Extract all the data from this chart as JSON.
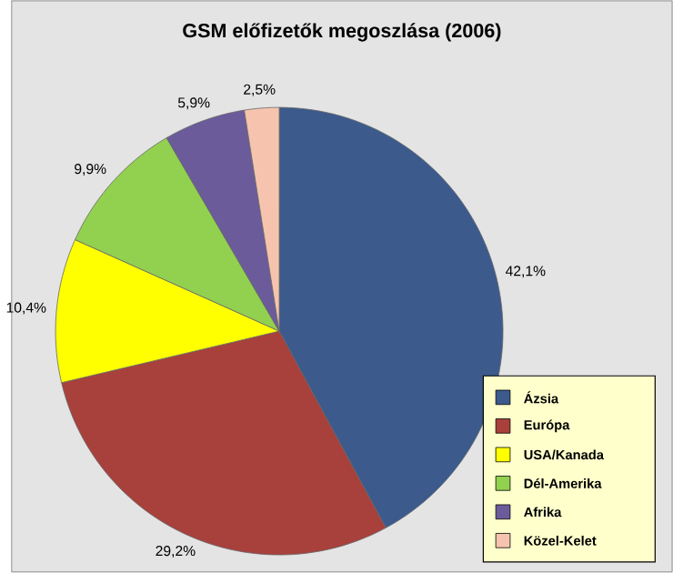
{
  "chart_data": {
    "type": "pie",
    "title": "GSM előfizetők megoszlása (2006)",
    "categories": [
      "Ázsia",
      "Európa",
      "USA/Kanada",
      "Dél-Amerika",
      "Afrika",
      "Közel-Kelet"
    ],
    "values": [
      42.1,
      29.2,
      10.4,
      9.9,
      5.9,
      2.5
    ],
    "colors": [
      "#3c5a8c",
      "#a8403c",
      "#ffff00",
      "#92d050",
      "#6b5b9b",
      "#f6c4ae"
    ],
    "value_labels": [
      "42,1%",
      "29,2%",
      "10,4%",
      "9,9%",
      "5,9%",
      "2,5%"
    ],
    "legend": "bottom right"
  }
}
